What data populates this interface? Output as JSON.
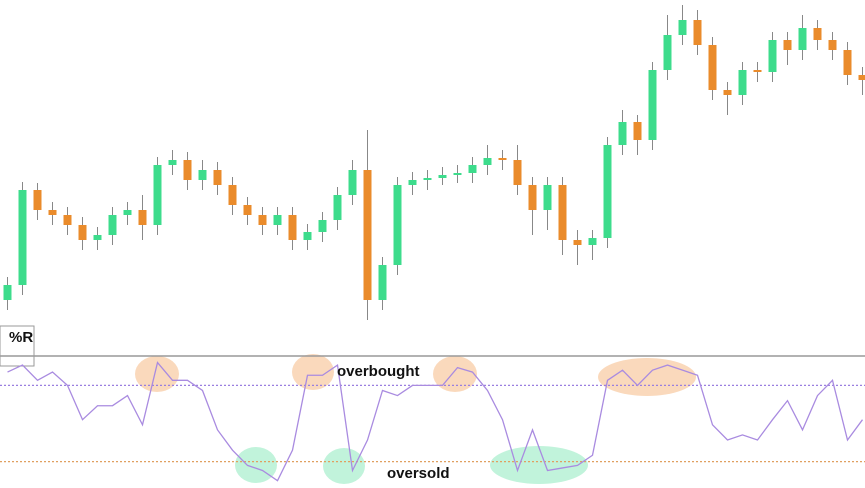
{
  "chart_data": [
    {
      "type": "candlestick",
      "ylim": [
        0,
        355
      ],
      "up_color": "#3ddc8c",
      "down_color": "#ea8b2b",
      "wick_color": "#888888",
      "open": [
        55,
        70,
        165,
        145,
        140,
        130,
        115,
        120,
        140,
        145,
        130,
        190,
        195,
        175,
        185,
        170,
        150,
        140,
        130,
        140,
        115,
        123,
        135,
        160,
        185,
        55,
        90,
        170,
        175,
        177,
        180,
        182,
        190,
        197,
        195,
        170,
        145,
        170,
        115,
        110,
        117,
        210,
        233,
        215,
        285,
        320,
        335,
        310,
        265,
        260,
        285,
        283,
        315,
        305,
        327,
        315,
        305,
        280
      ],
      "high": [
        78,
        173,
        172,
        153,
        148,
        138,
        128,
        148,
        153,
        160,
        198,
        205,
        203,
        195,
        193,
        178,
        158,
        148,
        148,
        148,
        131,
        143,
        168,
        195,
        225,
        98,
        178,
        183,
        185,
        188,
        190,
        198,
        210,
        205,
        210,
        178,
        178,
        178,
        125,
        125,
        218,
        245,
        240,
        293,
        340,
        350,
        345,
        318,
        273,
        293,
        293,
        323,
        323,
        340,
        335,
        323,
        313,
        288
      ],
      "low": [
        45,
        60,
        135,
        130,
        120,
        105,
        105,
        110,
        130,
        115,
        120,
        180,
        165,
        165,
        160,
        140,
        130,
        120,
        120,
        105,
        105,
        113,
        125,
        150,
        35,
        45,
        80,
        160,
        165,
        170,
        172,
        172,
        180,
        185,
        160,
        120,
        125,
        100,
        90,
        95,
        107,
        200,
        200,
        205,
        275,
        310,
        300,
        255,
        240,
        250,
        273,
        273,
        290,
        295,
        305,
        295,
        270,
        260
      ],
      "close": [
        70,
        165,
        145,
        140,
        130,
        115,
        120,
        140,
        145,
        130,
        190,
        195,
        175,
        185,
        170,
        150,
        140,
        130,
        140,
        115,
        123,
        135,
        160,
        185,
        55,
        90,
        170,
        175,
        177,
        180,
        182,
        190,
        197,
        195,
        170,
        145,
        170,
        115,
        110,
        117,
        210,
        233,
        215,
        285,
        320,
        335,
        310,
        265,
        260,
        285,
        283,
        315,
        305,
        327,
        315,
        305,
        280,
        275
      ]
    },
    {
      "type": "line",
      "title": "%R",
      "ylim": [
        -100,
        0
      ],
      "color": "#a98be0",
      "levels": [
        -20,
        -80
      ],
      "level_colors": [
        "#9a7fe0",
        "#e0a060"
      ],
      "annotations": [
        "overbought",
        "oversold"
      ],
      "values": [
        -9.5,
        -4,
        -16,
        -9.5,
        -20,
        -47,
        -36,
        -36,
        -28,
        -51,
        -2,
        -16,
        -16,
        -24,
        -55,
        -71,
        -83,
        -87,
        -95,
        -71,
        -12,
        -12,
        -4,
        -87,
        -63,
        -24,
        -28,
        -20,
        -20,
        -20,
        -6,
        -9.5,
        -24,
        -47,
        -87,
        -55,
        -87,
        -85,
        -83,
        -75,
        -16,
        -8,
        -20,
        -8,
        -4,
        -8,
        -12,
        -51,
        -63,
        -59,
        -63,
        -47,
        -32,
        -55,
        -28,
        -16,
        -63,
        -47
      ]
    }
  ]
}
